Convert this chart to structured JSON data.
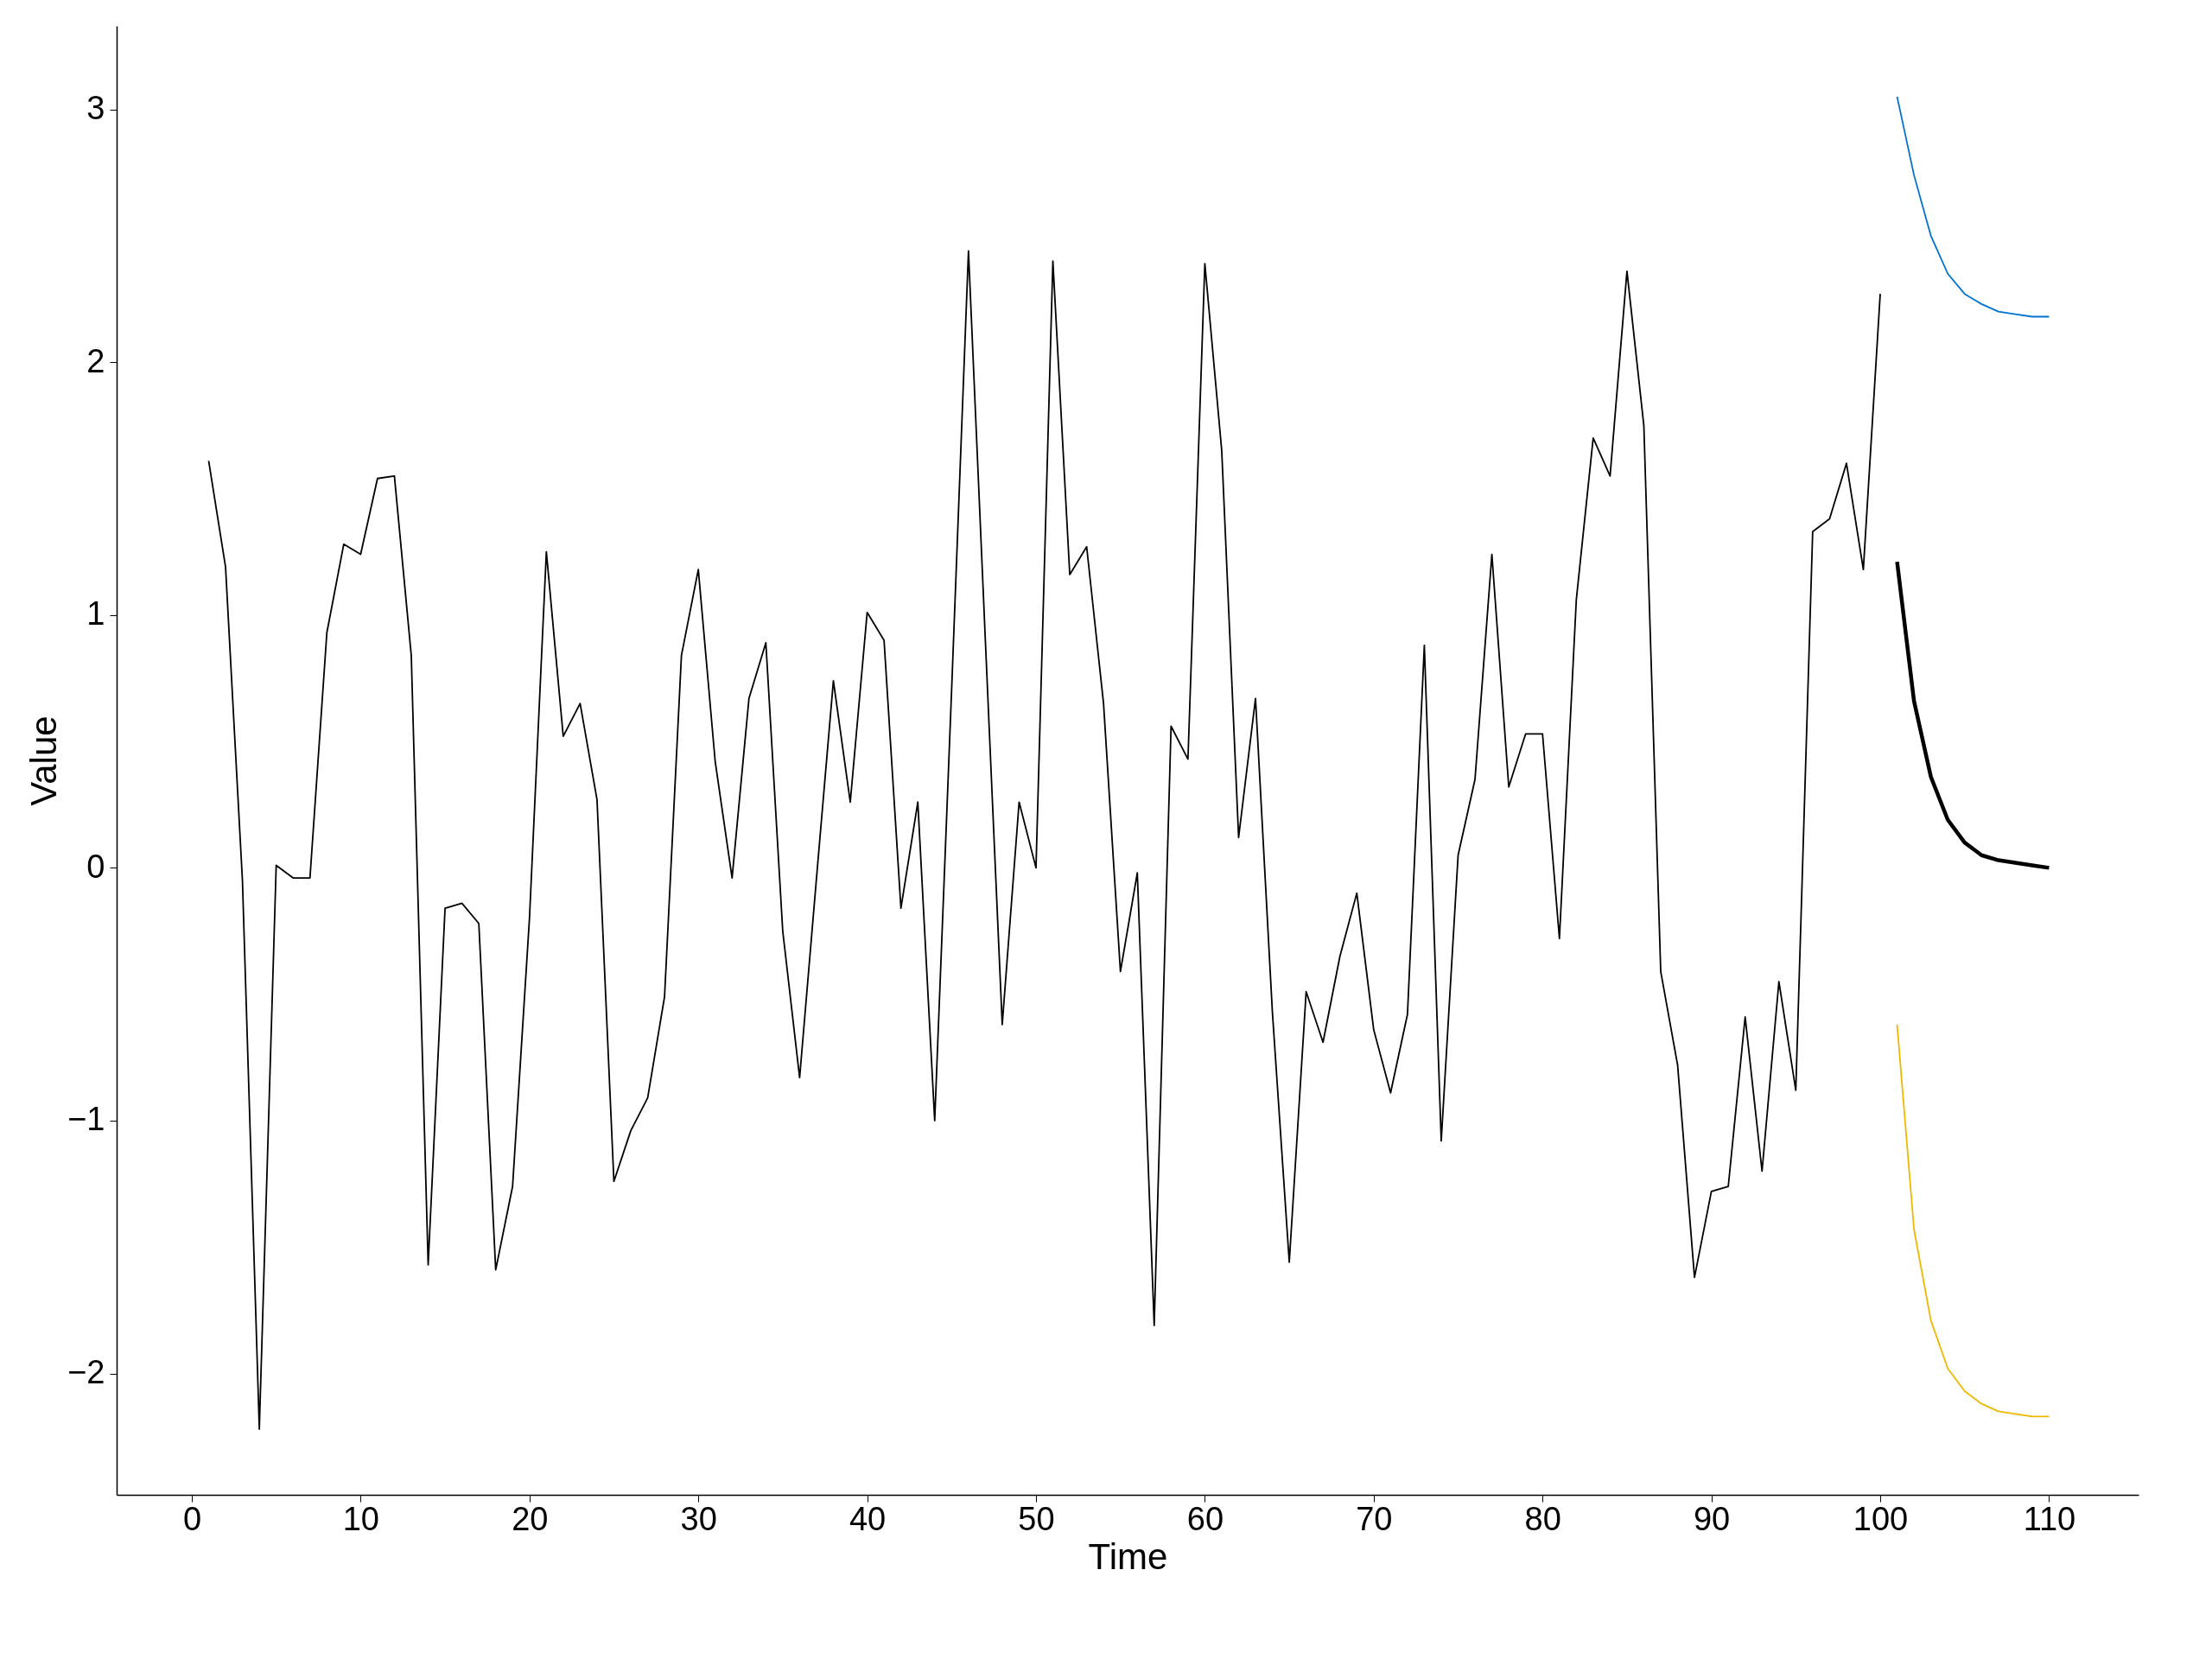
{
  "chart_data": {
    "type": "line",
    "xlabel": "Time",
    "ylabel": "Value",
    "xlim": [
      -4.45,
      115.3
    ],
    "ylim": [
      -2.48,
      3.33
    ],
    "xticks": [
      0,
      10,
      20,
      30,
      40,
      50,
      60,
      70,
      80,
      90,
      100,
      110
    ],
    "yticks": [
      -2,
      -1,
      0,
      1,
      2,
      3
    ],
    "grid": false,
    "line_style": "solid",
    "marker": "none",
    "series": [
      {
        "color": "#000000",
        "x": [
          1,
          2,
          3,
          4,
          5,
          6,
          7,
          8,
          9,
          10,
          11,
          12,
          13,
          14,
          15,
          16,
          17,
          18,
          19,
          20,
          21,
          22,
          23,
          24,
          25,
          26,
          27,
          28,
          29,
          30,
          31,
          32,
          33,
          34,
          35,
          36,
          37,
          38,
          39,
          40,
          41,
          42,
          43,
          44,
          45,
          46,
          47,
          48,
          49,
          50,
          51,
          52,
          53,
          54,
          55,
          56,
          57,
          58,
          59,
          60,
          61,
          62,
          63,
          64,
          65,
          66,
          67,
          68,
          69,
          70,
          71,
          72,
          73,
          74,
          75,
          76,
          77,
          78,
          79,
          80,
          81,
          82,
          83,
          84,
          85,
          86,
          87,
          88,
          89,
          90,
          91,
          92,
          93,
          94,
          95,
          96,
          97,
          98,
          99,
          100
        ],
        "values": [
          1.61,
          1.19,
          -0.05,
          -2.22,
          0.01,
          -0.04,
          -0.04,
          0.93,
          1.28,
          1.24,
          1.54,
          1.55,
          0.84,
          -1.57,
          -0.16,
          -0.14,
          -0.22,
          -1.59,
          -1.26,
          -0.2,
          1.25,
          0.52,
          0.65,
          0.27,
          -1.24,
          -1.04,
          -0.91,
          -0.51,
          0.84,
          1.18,
          0.42,
          -0.04,
          0.67,
          0.89,
          -0.25,
          -0.83,
          -0.04,
          0.74,
          0.26,
          1.01,
          0.9,
          -0.16,
          0.26,
          -1.0,
          0.7,
          2.44,
          0.9,
          -0.62,
          0.26,
          0.0,
          2.4,
          1.16,
          1.27,
          0.65,
          -0.41,
          -0.02,
          -1.81,
          0.56,
          0.43,
          2.39,
          1.65,
          0.12,
          0.67,
          -0.57,
          -1.56,
          -0.49,
          -0.69,
          -0.35,
          -0.1,
          -0.64,
          -0.89,
          -0.58,
          0.88,
          -1.08,
          0.05,
          0.35,
          1.24,
          0.32,
          0.53,
          0.53,
          -0.28,
          1.06,
          1.7,
          1.55,
          2.36,
          1.75,
          -0.41,
          -0.78,
          -1.62,
          -1.28,
          -1.26,
          -0.59,
          -1.2,
          -0.45,
          -0.88,
          1.33,
          1.38,
          1.6,
          1.18,
          2.27
        ]
      },
      {
        "color": "#000000",
        "x": [
          101,
          102,
          103,
          104,
          105,
          106,
          107,
          108,
          109,
          110
        ],
        "values": [
          1.21,
          0.66,
          0.36,
          0.19,
          0.1,
          0.05,
          0.03,
          0.02,
          0.01,
          0.0
        ]
      },
      {
        "color": "#0072cf",
        "x": [
          101,
          102,
          103,
          104,
          105,
          106,
          107,
          108,
          109,
          110
        ],
        "values": [
          3.05,
          2.74,
          2.5,
          2.35,
          2.27,
          2.23,
          2.2,
          2.19,
          2.18,
          2.18
        ]
      },
      {
        "color": "#efb800",
        "x": [
          101,
          102,
          103,
          104,
          105,
          106,
          107,
          108,
          109,
          110
        ],
        "values": [
          -0.62,
          -1.43,
          -1.79,
          -1.98,
          -2.07,
          -2.12,
          -2.15,
          -2.16,
          -2.17,
          -2.17
        ]
      }
    ]
  }
}
